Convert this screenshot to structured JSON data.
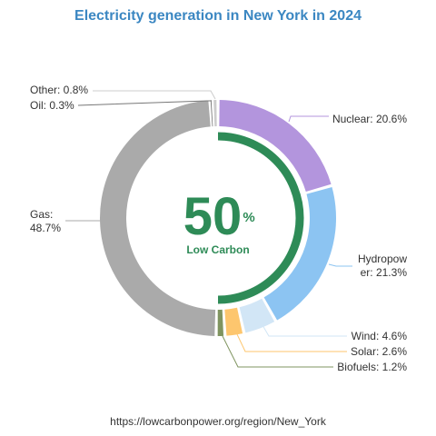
{
  "chart_data": {
    "type": "pie",
    "title": "Electricity generation in New York in 2024",
    "series": [
      {
        "name": "Nuclear",
        "label": [
          "Nuclear: 20.6%"
        ],
        "value": 20.6,
        "color": "#b395dd"
      },
      {
        "name": "Hydropower",
        "label": [
          "Hydropow",
          "er: 21.3%"
        ],
        "value": 21.3,
        "color": "#8cc4f2"
      },
      {
        "name": "Wind",
        "label": [
          "Wind: 4.6%"
        ],
        "value": 4.6,
        "color": "#d2e6f6"
      },
      {
        "name": "Solar",
        "label": [
          "Solar: 2.6%"
        ],
        "value": 2.6,
        "color": "#fdc66e"
      },
      {
        "name": "Biofuels",
        "label": [
          "Biofuels: 1.2%"
        ],
        "value": 1.2,
        "color": "#7f9460"
      },
      {
        "name": "Gas",
        "label": [
          "Gas:",
          "48.7%"
        ],
        "value": 48.7,
        "color": "#aaaaaa"
      },
      {
        "name": "Oil",
        "label": [
          "Oil: 0.3%"
        ],
        "value": 0.3,
        "color": "#777777"
      },
      {
        "name": "Other",
        "label": [
          "Other: 0.8%"
        ],
        "value": 0.8,
        "color": "#cccccc"
      }
    ],
    "center": {
      "value": "50",
      "unit": "%",
      "caption": "Low Carbon",
      "low_carbon_share": 50,
      "color": "#2e8b57"
    },
    "source": "https://lowcarbonpower.org/region/New_York"
  }
}
